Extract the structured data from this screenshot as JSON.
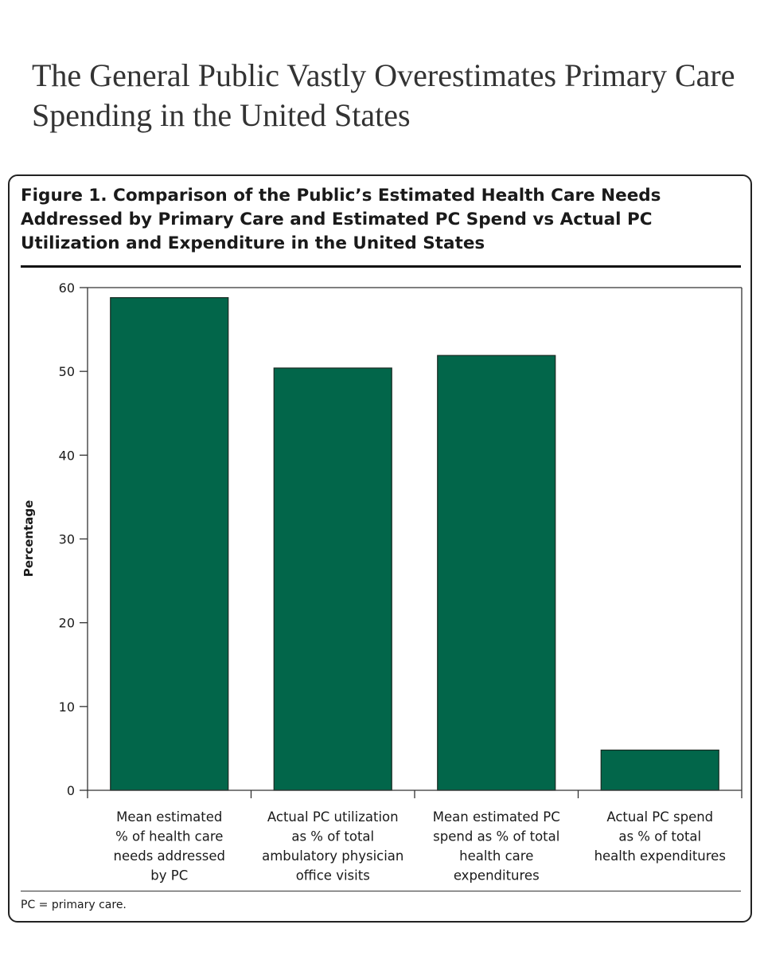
{
  "headline": "The General Public Vastly Overestimates Primary Care Spending in the United States",
  "figure": {
    "title": "Figure 1. Comparison of the Public’s Estimated Health Care Needs Addressed by Primary Care and Estimated PC Spend vs Actual PC Utilization and Expenditure in the United States",
    "footnote": "PC = primary care."
  },
  "colors": {
    "bar": "#02664a",
    "axis": "#333333"
  },
  "chart_data": {
    "type": "bar",
    "title": "",
    "xlabel": "",
    "ylabel": "Percentage",
    "ylim": [
      0,
      60
    ],
    "yticks": [
      0,
      10,
      20,
      30,
      40,
      50,
      60
    ],
    "grid": false,
    "categories": [
      [
        "Mean estimated",
        "% of health care",
        "needs addressed",
        "by PC"
      ],
      [
        "Actual PC utilization",
        "as % of total",
        "ambulatory physician",
        "office visits"
      ],
      [
        "Mean estimated PC",
        "spend as % of total",
        "health care",
        "expenditures"
      ],
      [
        "Actual PC spend",
        "as % of total",
        "health expenditures"
      ]
    ],
    "values": [
      58.8,
      50.4,
      51.9,
      4.8
    ]
  }
}
